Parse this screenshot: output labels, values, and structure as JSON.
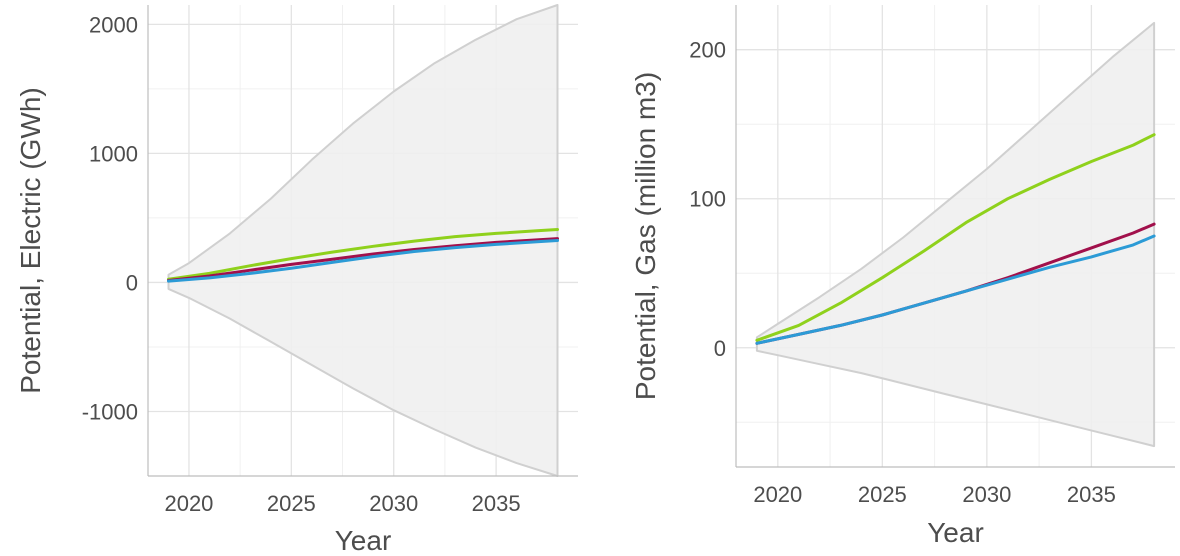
{
  "chart_data": [
    {
      "type": "line",
      "title": "",
      "xlabel": "Year",
      "ylabel": "Potential, Electric (GWh)",
      "xlim": [
        2018,
        2039
      ],
      "ylim": [
        -1500,
        2150
      ],
      "xticks": [
        2020,
        2025,
        2030,
        2035
      ],
      "xtick_labels": [
        "2020",
        "2025",
        "2030",
        "2035"
      ],
      "yticks": [
        -1000,
        0,
        1000,
        2000
      ],
      "ytick_labels": [
        "-1000",
        "0",
        "1000",
        "2000"
      ],
      "grid": true,
      "legend": "none",
      "band": {
        "x": [
          2019,
          2020,
          2022,
          2024,
          2026,
          2028,
          2030,
          2032,
          2034,
          2036,
          2038
        ],
        "upper": [
          60,
          150,
          380,
          650,
          950,
          1230,
          1480,
          1700,
          1880,
          2040,
          2150
        ],
        "lower": [
          -50,
          -120,
          -280,
          -460,
          -640,
          -820,
          -990,
          -1140,
          -1280,
          -1400,
          -1500
        ],
        "color": "#efefef",
        "edge_color": "#d0d0d0"
      },
      "series": [
        {
          "color": "#8fd11c",
          "x": [
            2019,
            2021,
            2023,
            2025,
            2027,
            2029,
            2031,
            2033,
            2035,
            2037,
            2038
          ],
          "values": [
            25,
            70,
            130,
            185,
            235,
            280,
            320,
            355,
            380,
            400,
            410
          ]
        },
        {
          "color": "#a1104b",
          "x": [
            2019,
            2021,
            2023,
            2025,
            2027,
            2029,
            2031,
            2033,
            2035,
            2037,
            2038
          ],
          "values": [
            15,
            50,
            95,
            140,
            180,
            220,
            255,
            285,
            310,
            330,
            340
          ]
        },
        {
          "color": "#2c9bd6",
          "x": [
            2019,
            2021,
            2023,
            2025,
            2027,
            2029,
            2031,
            2033,
            2035,
            2037,
            2038
          ],
          "values": [
            10,
            35,
            70,
            110,
            155,
            200,
            240,
            270,
            295,
            315,
            325
          ]
        }
      ]
    },
    {
      "type": "line",
      "title": "",
      "xlabel": "Year",
      "ylabel": "Potential, Gas (million m3)",
      "xlim": [
        2018,
        2039
      ],
      "ylim": [
        -80,
        230
      ],
      "xticks": [
        2020,
        2025,
        2030,
        2035
      ],
      "xtick_labels": [
        "2020",
        "2025",
        "2030",
        "2035"
      ],
      "yticks": [
        0,
        100,
        200
      ],
      "ytick_labels": [
        "0",
        "100",
        "200"
      ],
      "grid": true,
      "legend": "none",
      "band": {
        "x": [
          2019,
          2020,
          2022,
          2024,
          2026,
          2028,
          2030,
          2032,
          2034,
          2036,
          2038
        ],
        "upper": [
          7,
          16,
          34,
          53,
          74,
          97,
          120,
          145,
          170,
          195,
          218
        ],
        "lower": [
          -2,
          -5,
          -11,
          -17,
          -24,
          -31,
          -38,
          -45,
          -52,
          -59,
          -66
        ],
        "color": "#efefef",
        "edge_color": "#d0d0d0"
      },
      "series": [
        {
          "color": "#8fd11c",
          "x": [
            2019,
            2021,
            2023,
            2025,
            2027,
            2029,
            2031,
            2033,
            2035,
            2037,
            2038
          ],
          "values": [
            5,
            15,
            30,
            47,
            65,
            84,
            100,
            113,
            125,
            136,
            143
          ]
        },
        {
          "color": "#a1104b",
          "x": [
            2019,
            2021,
            2023,
            2025,
            2027,
            2029,
            2031,
            2033,
            2035,
            2037,
            2038
          ],
          "values": [
            3,
            9,
            15,
            22,
            30,
            38,
            47,
            57,
            67,
            77,
            83
          ]
        },
        {
          "color": "#2c9bd6",
          "x": [
            2019,
            2021,
            2023,
            2025,
            2027,
            2029,
            2031,
            2033,
            2035,
            2037,
            2038
          ],
          "values": [
            3,
            9,
            15,
            22,
            30,
            38,
            46,
            54,
            61,
            69,
            75
          ]
        }
      ]
    }
  ]
}
